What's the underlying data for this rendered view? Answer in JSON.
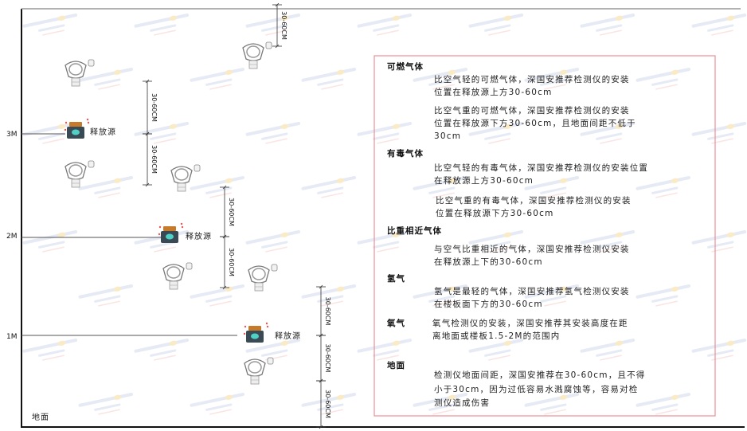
{
  "watermark": {
    "brand": "SINGOAN",
    "cn": "深国安"
  },
  "levels": {
    "l3": "3M",
    "l2": "2M",
    "l1": "1M",
    "ground": "地面"
  },
  "source_label": "释放源",
  "dimension_label": "30-60CM",
  "colors": {
    "box_border": "#e88f96",
    "source_cap": "#c77a2a",
    "source_body": "#3a4a55",
    "source_face": "#4fd1c5"
  },
  "info": {
    "combustible": {
      "heading": "可燃气体",
      "p1": [
        "比空气轻的可燃气体，深国安推荐检测仪的安装",
        "位置在释放源上方30-60cm"
      ],
      "p2": [
        "比空气重的可燃气体，深国安推荐检测仪的安装",
        "位置在释放源下方30-60cm，且地面间距不低于",
        "30cm"
      ]
    },
    "toxic": {
      "heading": "有毒气体",
      "p1": [
        "比空气轻的有毒气体，深国安推荐检测仪的安装位置",
        "在释放源上方30-60cm"
      ],
      "p2": [
        "比空气重的有毒气体，深国安推荐检测仪的安装",
        "位置在释放源下方30-60cm"
      ]
    },
    "similar": {
      "heading": "比重相近气体",
      "p1": [
        "与空气比重相近的气体，深国安推荐检测仪安装",
        "在释放源上下的30-60cm"
      ]
    },
    "hydrogen": {
      "heading": "氢气",
      "p1": [
        "氢气是最轻的气体，深国安推荐氢气检测仪安装",
        "在楼板面下方的30-60cm"
      ]
    },
    "oxygen": {
      "heading": "氧气",
      "p1": [
        "氧气检测仪的安装，深国安推荐其安装高度在距",
        "离地面或楼板1.5-2M的范围内"
      ]
    },
    "ground": {
      "heading": "地面",
      "p1": [
        "检测仪地面间距，深国安推荐在30-60cm，且不得",
        "小于30cm，因为过低容易水溅腐蚀等，容易对检",
        "测仪造成伤害"
      ]
    }
  }
}
